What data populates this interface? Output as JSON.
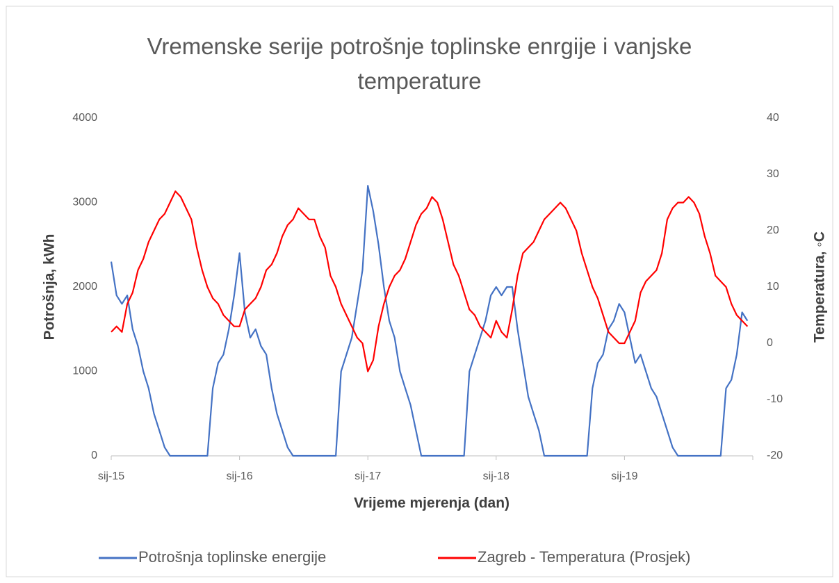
{
  "chart_data": {
    "type": "line",
    "title": "Vremenske serije potrošnje toplinske enrgije i vanjske temperature",
    "xlabel": "Vrijeme mjerenja (dan)",
    "ylabel": "Potrošnja, kWh",
    "y2label": "Temperatura, ◦C",
    "categories": [
      "sij-15",
      null,
      null,
      null,
      null,
      null,
      null,
      null,
      null,
      null,
      null,
      null,
      null,
      null,
      null,
      null,
      null,
      null,
      null,
      null,
      null,
      null,
      null,
      null,
      "sij-16",
      null,
      null,
      null,
      null,
      null,
      null,
      null,
      null,
      null,
      null,
      null,
      null,
      null,
      null,
      null,
      null,
      null,
      null,
      null,
      null,
      null,
      null,
      null,
      "sij-17",
      null,
      null,
      null,
      null,
      null,
      null,
      null,
      null,
      null,
      null,
      null,
      null,
      null,
      null,
      null,
      null,
      null,
      null,
      null,
      null,
      null,
      null,
      null,
      "sij-18",
      null,
      null,
      null,
      null,
      null,
      null,
      null,
      null,
      null,
      null,
      null,
      null,
      null,
      null,
      null,
      null,
      null,
      null,
      null,
      null,
      null,
      null,
      null,
      "sij-19",
      null,
      null,
      null,
      null,
      null,
      null,
      null,
      null,
      null,
      null,
      null,
      null,
      null,
      null,
      null,
      null,
      null,
      null,
      null,
      null,
      null,
      null,
      null
    ],
    "ylim": [
      0,
      4000
    ],
    "yticks": [
      0,
      1000,
      2000,
      3000,
      4000
    ],
    "y2lim": [
      -20,
      40
    ],
    "y2ticks": [
      -20,
      -10,
      0,
      10,
      20,
      30,
      40
    ],
    "grid": false,
    "legend": "bottom",
    "series": [
      {
        "name": "Potrošnja toplinske energije",
        "color": "#4472c4",
        "values": [
          2300,
          1900,
          1800,
          1900,
          1500,
          1300,
          1000,
          800,
          500,
          300,
          100,
          0,
          0,
          0,
          0,
          0,
          0,
          0,
          0,
          800,
          1100,
          1200,
          1500,
          1900,
          2400,
          1700,
          1400,
          1500,
          1300,
          1200,
          800,
          500,
          300,
          100,
          0,
          0,
          0,
          0,
          0,
          0,
          0,
          0,
          0,
          1000,
          1200,
          1400,
          1800,
          2200,
          3200,
          2900,
          2500,
          2000,
          1600,
          1400,
          1000,
          800,
          600,
          300,
          0,
          0,
          0,
          0,
          0,
          0,
          0,
          0,
          0,
          1000,
          1200,
          1400,
          1600,
          1900,
          2000,
          1900,
          2000,
          2000,
          1500,
          1100,
          700,
          500,
          300,
          0,
          0,
          0,
          0,
          0,
          0,
          0,
          0,
          0,
          800,
          1100,
          1200,
          1500,
          1600,
          1800,
          1700,
          1400,
          1100,
          1200,
          1000,
          800,
          700,
          500,
          300,
          100,
          0,
          0,
          0,
          0,
          0,
          0,
          0,
          0,
          0,
          800,
          900,
          1200,
          1700,
          1600
        ]
      },
      {
        "name": "Zagreb - Temperatura (Prosjek)",
        "color": "#ff0000",
        "axis": "y2",
        "values": [
          2,
          3,
          2,
          7,
          9,
          13,
          15,
          18,
          20,
          22,
          23,
          25,
          27,
          26,
          24,
          22,
          17,
          13,
          10,
          8,
          7,
          5,
          4,
          3,
          3,
          6,
          7,
          8,
          10,
          13,
          14,
          16,
          19,
          21,
          22,
          24,
          23,
          22,
          22,
          19,
          17,
          12,
          10,
          7,
          5,
          3,
          1,
          0,
          -5,
          -3,
          3,
          7,
          10,
          12,
          13,
          15,
          18,
          21,
          23,
          24,
          26,
          25,
          22,
          18,
          14,
          12,
          9,
          6,
          5,
          3,
          2,
          1,
          4,
          2,
          1,
          6,
          12,
          16,
          17,
          18,
          20,
          22,
          23,
          24,
          25,
          24,
          22,
          20,
          16,
          13,
          10,
          8,
          5,
          2,
          1,
          0,
          0,
          2,
          4,
          9,
          11,
          12,
          13,
          16,
          22,
          24,
          25,
          25,
          26,
          25,
          23,
          19,
          16,
          12,
          11,
          10,
          7,
          5,
          4,
          3
        ]
      }
    ]
  }
}
